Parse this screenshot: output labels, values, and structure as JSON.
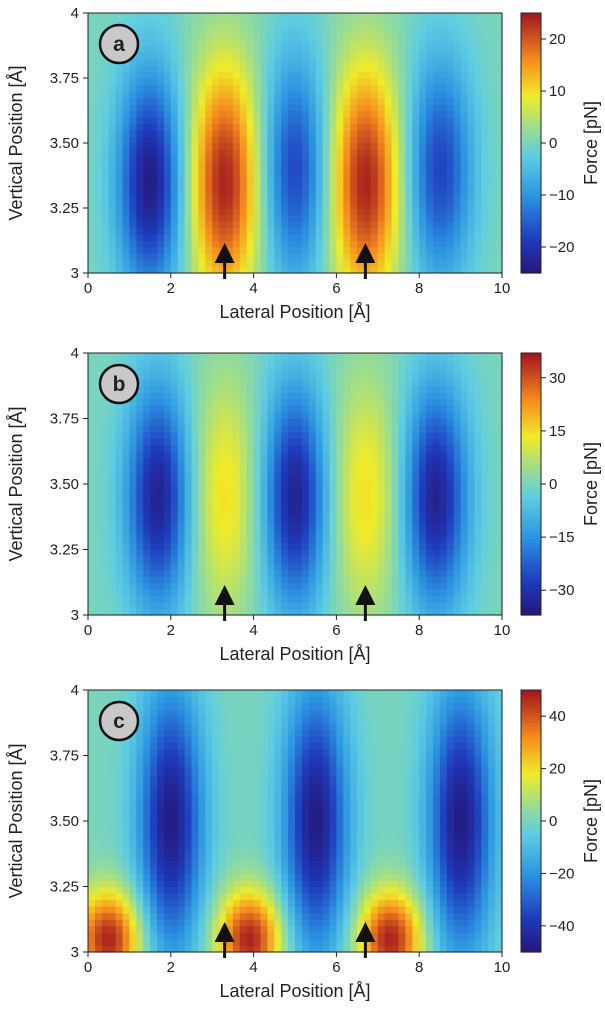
{
  "chart_data": [
    {
      "type": "heatmap",
      "panel_label": "a",
      "xlabel": "Lateral Position [Å]",
      "ylabel": "Vertical Position [Å]",
      "colorbar_label": "Force [pN]",
      "xlim": [
        0,
        10
      ],
      "ylim": [
        3,
        4
      ],
      "clim": [
        -25,
        25
      ],
      "xticks": [
        "0",
        "2",
        "4",
        "6",
        "8",
        "10"
      ],
      "yticks": [
        "3",
        "3.25",
        "3.50",
        "3.75",
        "4"
      ],
      "cticks": [
        {
          "value": 20,
          "label": "20"
        },
        {
          "value": 10,
          "label": "10"
        },
        {
          "value": 0,
          "label": "0"
        },
        {
          "value": -10,
          "label": "−10"
        },
        {
          "value": -20,
          "label": "−20"
        }
      ],
      "atom_markers_x": [
        3.3,
        6.7
      ],
      "features": {
        "minima": [
          {
            "x": 1.5,
            "y": 3.35,
            "value": -24
          },
          {
            "x": 5.0,
            "y": 3.4,
            "value": -18
          },
          {
            "x": 8.5,
            "y": 3.4,
            "value": -18
          }
        ],
        "maxima": [
          {
            "x": 3.3,
            "y": 3.35,
            "value": 24
          },
          {
            "x": 6.7,
            "y": 3.35,
            "value": 24
          }
        ]
      }
    },
    {
      "type": "heatmap",
      "panel_label": "b",
      "xlabel": "Lateral Position [Å]",
      "ylabel": "Vertical Position [Å]",
      "colorbar_label": "Force [pN]",
      "xlim": [
        0,
        10
      ],
      "ylim": [
        3,
        4
      ],
      "clim": [
        -37,
        37
      ],
      "xticks": [
        "0",
        "2",
        "4",
        "6",
        "8",
        "10"
      ],
      "yticks": [
        "3",
        "3.25",
        "3.50",
        "3.75",
        "4"
      ],
      "cticks": [
        {
          "value": 30,
          "label": "30"
        },
        {
          "value": 15,
          "label": "15"
        },
        {
          "value": 0,
          "label": "0"
        },
        {
          "value": -15,
          "label": "−15"
        },
        {
          "value": -30,
          "label": "−30"
        }
      ],
      "atom_markers_x": [
        3.3,
        6.7
      ],
      "features": {
        "minima": [
          {
            "x": 1.7,
            "y": 3.45,
            "value": -34
          },
          {
            "x": 5.0,
            "y": 3.45,
            "value": -34
          },
          {
            "x": 8.4,
            "y": 3.45,
            "value": -34
          }
        ],
        "maxima": [
          {
            "x": 3.3,
            "y": 3.45,
            "value": 15
          },
          {
            "x": 6.7,
            "y": 3.45,
            "value": 15
          }
        ]
      }
    },
    {
      "type": "heatmap",
      "panel_label": "c",
      "xlabel": "Lateral Position [Å]",
      "ylabel": "Vertical Position [Å]",
      "colorbar_label": "Force [pN]",
      "xlim": [
        0,
        10
      ],
      "ylim": [
        3,
        4
      ],
      "clim": [
        -50,
        50
      ],
      "xticks": [
        "0",
        "2",
        "4",
        "6",
        "8",
        "10"
      ],
      "yticks": [
        "3",
        "3.25",
        "3.50",
        "3.75",
        "4"
      ],
      "cticks": [
        {
          "value": 40,
          "label": "40"
        },
        {
          "value": 20,
          "label": "20"
        },
        {
          "value": 0,
          "label": "0"
        },
        {
          "value": -20,
          "label": "−20"
        },
        {
          "value": -40,
          "label": "−40"
        }
      ],
      "atom_markers_x": [
        3.3,
        6.7
      ],
      "features": {
        "minima": [
          {
            "x": 2.0,
            "y": 3.5,
            "value": -48
          },
          {
            "x": 5.5,
            "y": 3.5,
            "value": -48
          },
          {
            "x": 9.0,
            "y": 3.5,
            "value": -48
          }
        ],
        "maxima": [
          {
            "x": 0.5,
            "y": 3.05,
            "value": 48
          },
          {
            "x": 3.9,
            "y": 3.05,
            "value": 48
          },
          {
            "x": 7.3,
            "y": 3.05,
            "value": 48
          }
        ]
      }
    }
  ]
}
